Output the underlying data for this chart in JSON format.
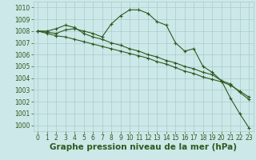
{
  "background_color": "#cce8e8",
  "grid_color": "#aacccc",
  "line_color": "#2d5a1e",
  "xlabel": "Graphe pression niveau de la mer (hPa)",
  "xlabel_fontsize": 7.5,
  "xlabel_color": "#2d5a1e",
  "ylim": [
    999.5,
    1010.5
  ],
  "xlim": [
    -0.5,
    23.5
  ],
  "yticks": [
    1000,
    1001,
    1002,
    1003,
    1004,
    1005,
    1006,
    1007,
    1008,
    1009,
    1010
  ],
  "xticks": [
    0,
    1,
    2,
    3,
    4,
    5,
    6,
    7,
    8,
    9,
    10,
    11,
    12,
    13,
    14,
    15,
    16,
    17,
    18,
    19,
    20,
    21,
    22,
    23
  ],
  "tick_fontsize": 5.5,
  "line1": [
    1008.0,
    1007.9,
    1007.8,
    1008.1,
    1008.2,
    1008.0,
    1007.8,
    1007.5,
    1008.6,
    1009.3,
    1009.8,
    1009.8,
    1009.5,
    1008.8,
    1008.5,
    1007.0,
    1006.3,
    1006.5,
    1005.0,
    1004.5,
    1003.8,
    1002.3,
    1001.0,
    999.8
  ],
  "line2": [
    1008.0,
    1008.0,
    1008.2,
    1008.5,
    1008.3,
    1007.8,
    1007.5,
    1007.3,
    1007.0,
    1006.8,
    1006.5,
    1006.3,
    1006.0,
    1005.8,
    1005.5,
    1005.3,
    1005.0,
    1004.8,
    1004.5,
    1004.3,
    1003.8,
    1003.5,
    1002.8,
    1002.2
  ],
  "line3": [
    1008.0,
    1007.8,
    1007.6,
    1007.5,
    1007.3,
    1007.1,
    1006.9,
    1006.7,
    1006.5,
    1006.3,
    1006.1,
    1005.9,
    1005.7,
    1005.4,
    1005.2,
    1004.9,
    1004.6,
    1004.4,
    1004.1,
    1003.9,
    1003.7,
    1003.4,
    1002.9,
    1002.4
  ]
}
